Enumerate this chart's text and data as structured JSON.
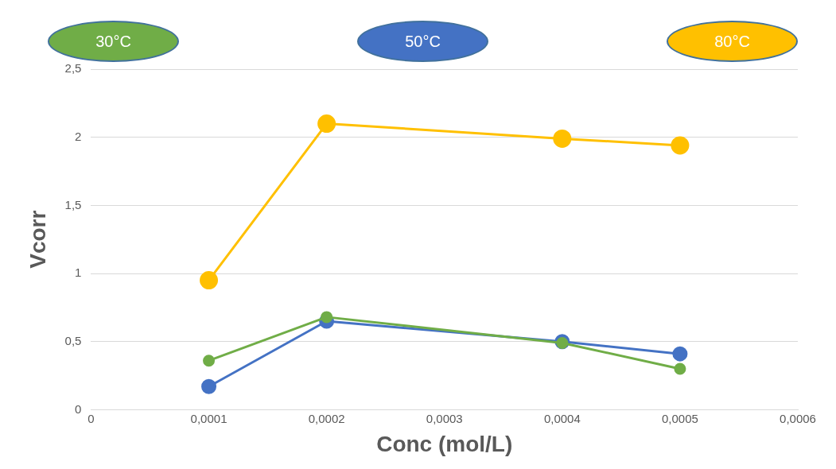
{
  "chart_data": {
    "type": "line",
    "xlabel": "Conc (mol/L)",
    "ylabel": "Vcorr",
    "x": [
      0.0001,
      0.0002,
      0.0004,
      0.0005
    ],
    "series": [
      {
        "name": "30°C",
        "color": "#70ad47",
        "values": [
          0.36,
          0.68,
          0.49,
          0.3
        ]
      },
      {
        "name": "50°C",
        "color": "#4472c4",
        "values": [
          0.17,
          0.65,
          0.5,
          0.41
        ]
      },
      {
        "name": "80°C",
        "color": "#ffc000",
        "values": [
          0.95,
          2.1,
          1.99,
          1.94
        ]
      }
    ],
    "xlim": [
      0,
      0.0006
    ],
    "xticks": [
      0,
      {
        "value": 0.0001,
        "label": "0,0001"
      },
      {
        "value": 0.0002,
        "label": "0,0002"
      },
      {
        "value": 0.0003,
        "label": "0,0003"
      },
      {
        "value": 0.0004,
        "label": "0,0004"
      },
      {
        "value": 0.0005,
        "label": "0,0005"
      },
      {
        "value": 0.0006,
        "label": "0,0006"
      }
    ],
    "ylim": [
      0,
      2.5
    ],
    "yticks": [
      0,
      {
        "value": 0.5,
        "label": "0,5"
      },
      1,
      {
        "value": 1.5,
        "label": "1,5"
      },
      2,
      {
        "value": 2.5,
        "label": "2,5"
      }
    ],
    "grid": "y",
    "legend": "top",
    "marker": "circle",
    "line_style": "solid"
  }
}
